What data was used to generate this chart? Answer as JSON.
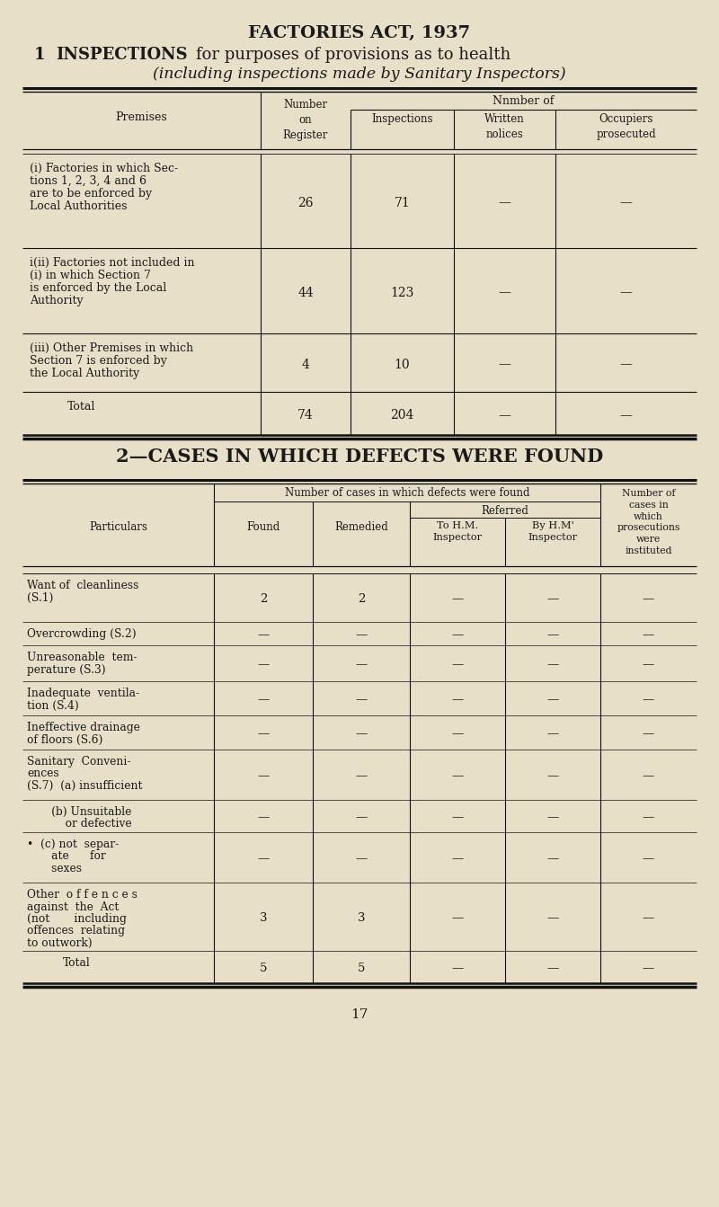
{
  "bg_color": "#e8dfc8",
  "text_color": "#1a1a1a",
  "title": "FACTORIES ACT, 1937",
  "page_number": "17",
  "section1_bold": "INSPECTIONS",
  "section1_pre": "1",
  "section1_normal": "for purposes of provisions as to health",
  "section1_line2": "(including inspections made by Sanitary Inspectors)",
  "section2_heading": "2—CASES IN WHICH DEFECTS WERE FOUND",
  "t1_rows": [
    {
      "label_lines": [
        "(i) Factories in which Sec-",
        "tions 1, 2, 3, 4 and 6",
        "are to be enforced by",
        "Local Authorities"
      ],
      "values": [
        "26",
        "71",
        "—",
        "—"
      ],
      "is_total": false
    },
    {
      "label_lines": [
        "i(ii) Factories not included in",
        "(i) in which Section 7",
        "is enforced by the Local",
        "Authority"
      ],
      "values": [
        "44",
        "123",
        "—",
        "—"
      ],
      "is_total": false
    },
    {
      "label_lines": [
        "(iii) Other Premises in which",
        "Section 7 is enforced by",
        "the Local Authority"
      ],
      "values": [
        "4",
        "10",
        "—",
        "—"
      ],
      "is_total": false
    },
    {
      "label_lines": [
        "Total"
      ],
      "values": [
        "74",
        "204",
        "—",
        "—"
      ],
      "is_total": true
    }
  ],
  "t2_rows": [
    {
      "label_lines": [
        "Want of  cleanliness",
        "(S.1)"
      ],
      "values": [
        "2",
        "2",
        "—",
        "—",
        "—"
      ],
      "is_total": false
    },
    {
      "label_lines": [
        "Overcrowding (S.2)"
      ],
      "values": [
        "—",
        "—",
        "—",
        "—",
        "—"
      ],
      "is_total": false
    },
    {
      "label_lines": [
        "Unreasonable  tem-",
        "perature (S.3)"
      ],
      "values": [
        "—",
        "—",
        "—",
        "—",
        "—"
      ],
      "is_total": false
    },
    {
      "label_lines": [
        "Inadequate  ventila-",
        "tion (S.4)"
      ],
      "values": [
        "—",
        "—",
        "—",
        "—",
        "—"
      ],
      "is_total": false
    },
    {
      "label_lines": [
        "Ineffective drainage",
        "of floors (S.6)"
      ],
      "values": [
        "—",
        "—",
        "—",
        "—",
        "—"
      ],
      "is_total": false
    },
    {
      "label_lines": [
        "Sanitary  Conveni-",
        "ences",
        "(S.7)  (a) insufficient"
      ],
      "values": [
        "—",
        "—",
        "—",
        "—",
        "—"
      ],
      "is_total": false
    },
    {
      "label_lines": [
        "       (b) Unsuitable",
        "           or defective"
      ],
      "values": [
        "—",
        "—",
        "—",
        "—",
        "—"
      ],
      "is_total": false
    },
    {
      "label_lines": [
        "•  (c) not  separ-",
        "       ate      for",
        "       sexes"
      ],
      "values": [
        "—",
        "—",
        "—",
        "—",
        "—"
      ],
      "is_total": false
    },
    {
      "label_lines": [
        "Other  o f f e n c e s",
        "against  the  Act",
        "(not       including",
        "offences  relating",
        "to outwork)"
      ],
      "values": [
        "3",
        "3",
        "—",
        "—",
        "—"
      ],
      "is_total": false
    },
    {
      "label_lines": [
        "Total"
      ],
      "values": [
        "5",
        "5",
        "—",
        "—",
        "—"
      ],
      "is_total": true
    }
  ]
}
